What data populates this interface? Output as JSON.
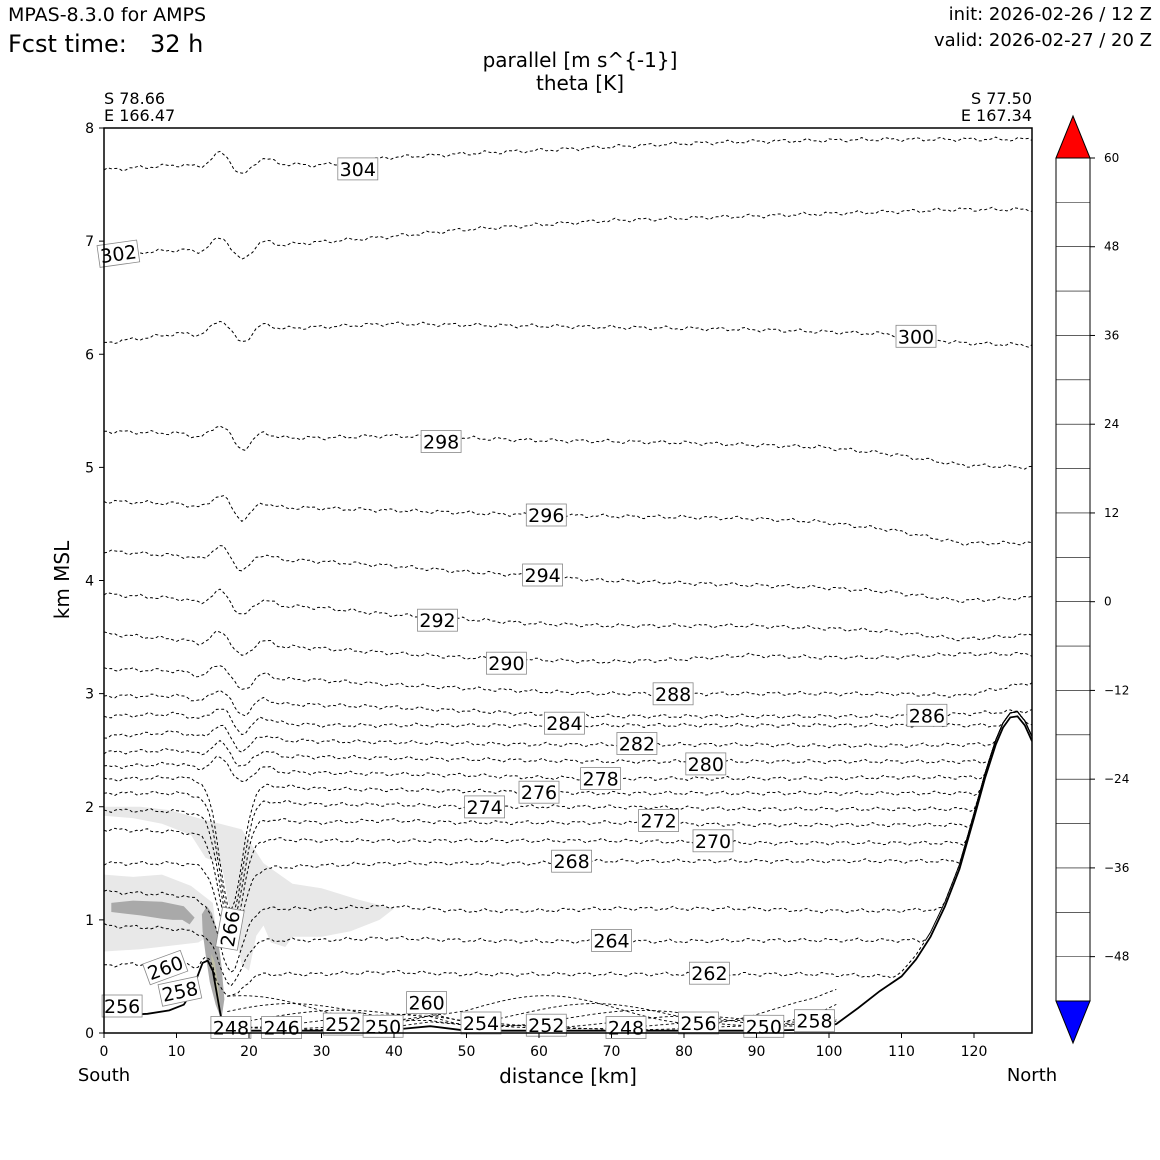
{
  "header": {
    "app_title": "MPAS-8.3.0 for AMPS",
    "fcst_label": "Fcst time:",
    "fcst_value": "32 h",
    "init": "init: 2026-02-26 / 12 Z",
    "valid": "valid: 2026-02-27 / 20 Z"
  },
  "chart_data": {
    "type": "contour",
    "title": "parallel [m s^{-1}]",
    "subtitle": "theta [K]",
    "xlabel": "distance [km]",
    "ylabel": "km MSL",
    "xlim": [
      0,
      128
    ],
    "ylim": [
      0,
      8
    ],
    "x_ticks": [
      0,
      10,
      20,
      30,
      40,
      50,
      60,
      70,
      80,
      90,
      100,
      110,
      120
    ],
    "y_ticks": [
      0,
      1,
      2,
      3,
      4,
      5,
      6,
      7,
      8
    ],
    "endpoints": {
      "start_lat": "S 78.66",
      "start_lon": "E 166.47",
      "end_lat": "S 77.50",
      "end_lon": "E 167.34",
      "start_label": "South",
      "end_label": "North"
    },
    "colorbar": {
      "ticks": [
        "60",
        "48",
        "36",
        "24",
        "12",
        "0",
        "−12",
        "−24",
        "−36",
        "−48"
      ],
      "tick_values": [
        60,
        48,
        36,
        24,
        12,
        0,
        -12,
        -24,
        -36,
        -48
      ],
      "levels_top_to_bottom": [
        60,
        54,
        48,
        42,
        36,
        30,
        24,
        18,
        12,
        6,
        0,
        -6,
        -12,
        -18,
        -24,
        -30,
        -36,
        -42,
        -48,
        -54
      ],
      "colors_top_to_bottom": [
        "#ff0000",
        "#ff6e6e",
        "#ffe86e",
        "#ffff32",
        "#ffff6e",
        "#ffffaa",
        "#bfbfa6",
        "#a9a9a9",
        "#e8e8e8",
        "#ffffff",
        "#ffffff",
        "#f0fff0",
        "#d8ffd8",
        "#a8ffa8",
        "#64ff64",
        "#1eff1e",
        "#00e664",
        "#00c8c8",
        "#0000ff"
      ],
      "over_color": "#ff0000",
      "under_color": "#0000ff"
    },
    "theta_contour_labels": [
      {
        "text": "304",
        "value": 304,
        "x": 35,
        "y": 7.63
      },
      {
        "text": "302",
        "value": 302,
        "x": 2,
        "y": 6.88
      },
      {
        "text": "300",
        "value": 300,
        "x": 112,
        "y": 6.15
      },
      {
        "text": "298",
        "value": 298,
        "x": 46.5,
        "y": 5.22
      },
      {
        "text": "296",
        "value": 296,
        "x": 61,
        "y": 4.57
      },
      {
        "text": "294",
        "value": 294,
        "x": 60.5,
        "y": 4.04
      },
      {
        "text": "292",
        "value": 292,
        "x": 46,
        "y": 3.64
      },
      {
        "text": "290",
        "value": 290,
        "x": 55.5,
        "y": 3.26
      },
      {
        "text": "288",
        "value": 288,
        "x": 78.5,
        "y": 2.99
      },
      {
        "text": "286",
        "value": 286,
        "x": 113.5,
        "y": 2.8
      },
      {
        "text": "284",
        "value": 284,
        "x": 63.5,
        "y": 2.73
      },
      {
        "text": "282",
        "value": 282,
        "x": 73.5,
        "y": 2.55
      },
      {
        "text": "280",
        "value": 280,
        "x": 83,
        "y": 2.37
      },
      {
        "text": "278",
        "value": 278,
        "x": 68.5,
        "y": 2.24
      },
      {
        "text": "276",
        "value": 276,
        "x": 60,
        "y": 2.12
      },
      {
        "text": "274",
        "value": 274,
        "x": 52.5,
        "y": 1.99
      },
      {
        "text": "272",
        "value": 272,
        "x": 76.5,
        "y": 1.87
      },
      {
        "text": "270",
        "value": 270,
        "x": 84,
        "y": 1.69
      },
      {
        "text": "268",
        "value": 268,
        "x": 64.5,
        "y": 1.51
      },
      {
        "text": "266",
        "value": 266,
        "x": 17.5,
        "y": 0.92
      },
      {
        "text": "264",
        "value": 264,
        "x": 70,
        "y": 0.81
      },
      {
        "text": "262",
        "value": 262,
        "x": 83.5,
        "y": 0.52
      },
      {
        "text": "260",
        "value": 260,
        "x": 8.5,
        "y": 0.57
      },
      {
        "text": "260",
        "value": 260,
        "x": 44.5,
        "y": 0.26
      },
      {
        "text": "258",
        "value": 258,
        "x": 10.5,
        "y": 0.36
      },
      {
        "text": "258",
        "value": 258,
        "x": 98,
        "y": 0.1
      },
      {
        "text": "256",
        "value": 256,
        "x": 2.5,
        "y": 0.23
      },
      {
        "text": "256",
        "value": 256,
        "x": 82,
        "y": 0.08
      },
      {
        "text": "254",
        "value": 254,
        "x": 52,
        "y": 0.08
      },
      {
        "text": "252",
        "value": 252,
        "x": 33,
        "y": 0.07
      },
      {
        "text": "252",
        "value": 252,
        "x": 61,
        "y": 0.06
      },
      {
        "text": "250",
        "value": 250,
        "x": 38.5,
        "y": 0.05
      },
      {
        "text": "250",
        "value": 250,
        "x": 91,
        "y": 0.05
      },
      {
        "text": "248",
        "value": 248,
        "x": 17.5,
        "y": 0.04
      },
      {
        "text": "248",
        "value": 248,
        "x": 72,
        "y": 0.04
      },
      {
        "text": "246",
        "value": 246,
        "x": 24.5,
        "y": 0.04
      }
    ],
    "terrain_profile": {
      "x": [
        0,
        3,
        6,
        9,
        11,
        12,
        13,
        13.6,
        14.3,
        15,
        15.7,
        16.3,
        17,
        20,
        30,
        40,
        45,
        50,
        60,
        70,
        80,
        90,
        98,
        101,
        104,
        107,
        110,
        112,
        114,
        116,
        118,
        120,
        121.5,
        123,
        124,
        125,
        126,
        127,
        128
      ],
      "y": [
        0.15,
        0.16,
        0.17,
        0.2,
        0.25,
        0.35,
        0.52,
        0.62,
        0.64,
        0.55,
        0.3,
        0.08,
        0.02,
        0.02,
        0.02,
        0.03,
        0.06,
        0.02,
        0.02,
        0.02,
        0.02,
        0.02,
        0.03,
        0.08,
        0.22,
        0.37,
        0.5,
        0.65,
        0.85,
        1.12,
        1.45,
        1.9,
        2.25,
        2.55,
        2.7,
        2.79,
        2.8,
        2.72,
        2.58
      ]
    },
    "wind_shading": [
      {
        "level": "6 to 12",
        "color": "#e8e8e8",
        "x": [
          0,
          5,
          9,
          13,
          16,
          19,
          22,
          26,
          30,
          35,
          40,
          38,
          34,
          30,
          26,
          25,
          23,
          22,
          21,
          20,
          19,
          18,
          17,
          16.5,
          16,
          14,
          12,
          8,
          4,
          0
        ],
        "y": [
          2.0,
          2.0,
          1.97,
          1.9,
          1.85,
          1.8,
          1.5,
          1.32,
          1.28,
          1.18,
          1.1,
          1.0,
          0.9,
          0.85,
          0.85,
          0.76,
          0.8,
          0.95,
          0.86,
          0.55,
          0.6,
          0.9,
          1.2,
          1.4,
          1.5,
          1.55,
          1.75,
          1.85,
          1.9,
          1.92
        ]
      },
      {
        "level": "6 to 12 (lower)",
        "color": "#e8e8e8",
        "x": [
          0,
          4,
          8,
          12,
          15,
          15.5,
          13,
          9,
          5,
          0
        ],
        "y": [
          1.4,
          1.38,
          1.4,
          1.3,
          1.15,
          0.9,
          0.8,
          0.77,
          0.74,
          0.72
        ]
      },
      {
        "level": "12 to 18",
        "color": "#a9a9a9",
        "x": [
          1,
          4,
          8,
          11,
          12.5,
          11.8,
          10.8,
          9.5,
          8,
          5,
          1
        ],
        "y": [
          1.15,
          1.17,
          1.16,
          1.12,
          1.02,
          0.96,
          1.0,
          1.0,
          1.01,
          1.04,
          1.07
        ]
      },
      {
        "level": "12 to 18 (valley)",
        "color": "#a9a9a9",
        "x": [
          13.5,
          14.2,
          14.9,
          15.6,
          16.2,
          16.6,
          16.2,
          15.4,
          14.6,
          14.0,
          13.6
        ],
        "y": [
          1.05,
          1.12,
          1.06,
          0.9,
          0.6,
          0.3,
          0.12,
          0.25,
          0.45,
          0.7,
          0.9
        ]
      },
      {
        "level": "18 to 24 (valley)",
        "color": "#bfbfa6",
        "x": [
          14.8,
          15.3,
          15.7,
          16.0,
          15.8,
          15.3,
          14.9
        ],
        "y": [
          0.7,
          0.62,
          0.45,
          0.25,
          0.2,
          0.38,
          0.55
        ]
      }
    ],
    "theta_levels": [
      {
        "value": 304,
        "y": [
          7.63,
          7.67,
          7.7,
          7.67,
          7.74,
          7.77,
          7.8,
          7.83,
          7.86,
          7.88,
          7.89,
          7.9,
          7.9,
          7.9
        ]
      },
      {
        "value": 302,
        "y": [
          6.88,
          6.92,
          6.95,
          6.99,
          7.04,
          7.1,
          7.14,
          7.18,
          7.2,
          7.22,
          7.24,
          7.26,
          7.28,
          7.28
        ]
      },
      {
        "value": 300,
        "y": [
          6.1,
          6.18,
          6.22,
          6.24,
          6.27,
          6.26,
          6.25,
          6.24,
          6.23,
          6.22,
          6.2,
          6.18,
          6.1,
          6.08
        ]
      },
      {
        "value": 298,
        "y": [
          5.32,
          5.3,
          5.27,
          5.26,
          5.28,
          5.26,
          5.24,
          5.23,
          5.22,
          5.2,
          5.18,
          5.12,
          5.02,
          5.0
        ]
      },
      {
        "value": 296,
        "y": [
          4.7,
          4.68,
          4.65,
          4.64,
          4.62,
          4.6,
          4.58,
          4.57,
          4.56,
          4.55,
          4.52,
          4.45,
          4.33,
          4.33
        ]
      },
      {
        "value": 294,
        "y": [
          4.26,
          4.22,
          4.2,
          4.17,
          4.13,
          4.08,
          4.04,
          4.0,
          3.98,
          3.96,
          3.94,
          3.9,
          3.82,
          3.85
        ]
      },
      {
        "value": 292,
        "y": [
          3.88,
          3.84,
          3.8,
          3.76,
          3.7,
          3.66,
          3.62,
          3.6,
          3.6,
          3.6,
          3.58,
          3.55,
          3.48,
          3.52
        ]
      },
      {
        "value": 290,
        "y": [
          3.53,
          3.48,
          3.44,
          3.4,
          3.36,
          3.32,
          3.3,
          3.28,
          3.3,
          3.34,
          3.32,
          3.32,
          3.35,
          3.35
        ]
      },
      {
        "value": 288,
        "y": [
          3.22,
          3.2,
          3.14,
          3.12,
          3.08,
          3.05,
          3.02,
          3.0,
          3.0,
          3.0,
          3.0,
          3.0,
          2.98,
          3.1
        ]
      },
      {
        "value": 286,
        "y": [
          2.98,
          2.98,
          2.92,
          2.9,
          2.88,
          2.85,
          2.82,
          2.8,
          2.8,
          2.8,
          2.8,
          2.8,
          2.82,
          2.85
        ]
      },
      {
        "value": 284,
        "y": [
          2.8,
          2.82,
          2.76,
          2.72,
          2.72,
          2.72,
          2.72,
          2.72,
          2.72,
          2.72,
          2.72,
          2.72,
          2.72,
          2.72
        ]
      },
      {
        "value": 282,
        "y": [
          2.62,
          2.66,
          2.6,
          2.58,
          2.57,
          2.56,
          2.55,
          2.55,
          2.55,
          2.55,
          2.54,
          2.54,
          2.55,
          2.56
        ]
      },
      {
        "value": 280,
        "y": [
          2.48,
          2.5,
          2.46,
          2.44,
          2.43,
          2.42,
          2.41,
          2.4,
          2.4,
          2.4,
          2.4,
          2.4,
          2.4,
          2.4
        ]
      },
      {
        "value": 278,
        "y": [
          2.35,
          2.38,
          2.32,
          2.3,
          2.29,
          2.28,
          2.26,
          2.25,
          2.25,
          2.25,
          2.25,
          2.26,
          2.26,
          2.26
        ]
      },
      {
        "value": 276,
        "y": [
          2.24,
          2.26,
          2.2,
          2.16,
          2.15,
          2.14,
          2.13,
          2.12,
          2.12,
          2.12,
          2.12,
          2.12,
          2.12,
          2.12
        ]
      },
      {
        "value": 274,
        "y": [
          2.12,
          2.12,
          2.06,
          2.02,
          2.02,
          2.0,
          2.0,
          2.0,
          1.99,
          1.98,
          1.98,
          1.98,
          1.98,
          1.98
        ]
      },
      {
        "value": 272,
        "y": [
          1.97,
          1.96,
          1.9,
          1.86,
          1.88,
          1.86,
          1.86,
          1.86,
          1.85,
          1.84,
          1.84,
          1.84,
          1.84,
          1.84
        ]
      },
      {
        "value": 270,
        "y": [
          1.8,
          1.78,
          1.72,
          1.7,
          1.7,
          1.7,
          1.7,
          1.7,
          1.69,
          1.68,
          1.68,
          1.68,
          1.68,
          1.68
        ]
      },
      {
        "value": 268,
        "y": [
          1.5,
          1.5,
          1.45,
          1.48,
          1.5,
          1.5,
          1.5,
          1.52,
          1.52,
          1.52,
          1.52,
          1.52,
          1.52,
          1.52
        ]
      },
      {
        "value": 266,
        "y": [
          1.25,
          1.22,
          1.1,
          1.1,
          1.12,
          1.08,
          1.08,
          1.1,
          1.1,
          1.1,
          1.08,
          1.08,
          1.1,
          1.1
        ]
      },
      {
        "value": 264,
        "y": [
          0.95,
          0.92,
          0.82,
          0.82,
          0.84,
          0.82,
          0.81,
          0.81,
          0.81,
          0.82,
          0.82,
          0.82,
          0.82,
          0.82
        ]
      },
      {
        "value": 262,
        "y": [
          0.6,
          0.62,
          0.52,
          0.52,
          0.54,
          0.52,
          0.52,
          0.52,
          0.52,
          0.52,
          0.52,
          0.5,
          0.48,
          0.48
        ]
      }
    ]
  }
}
